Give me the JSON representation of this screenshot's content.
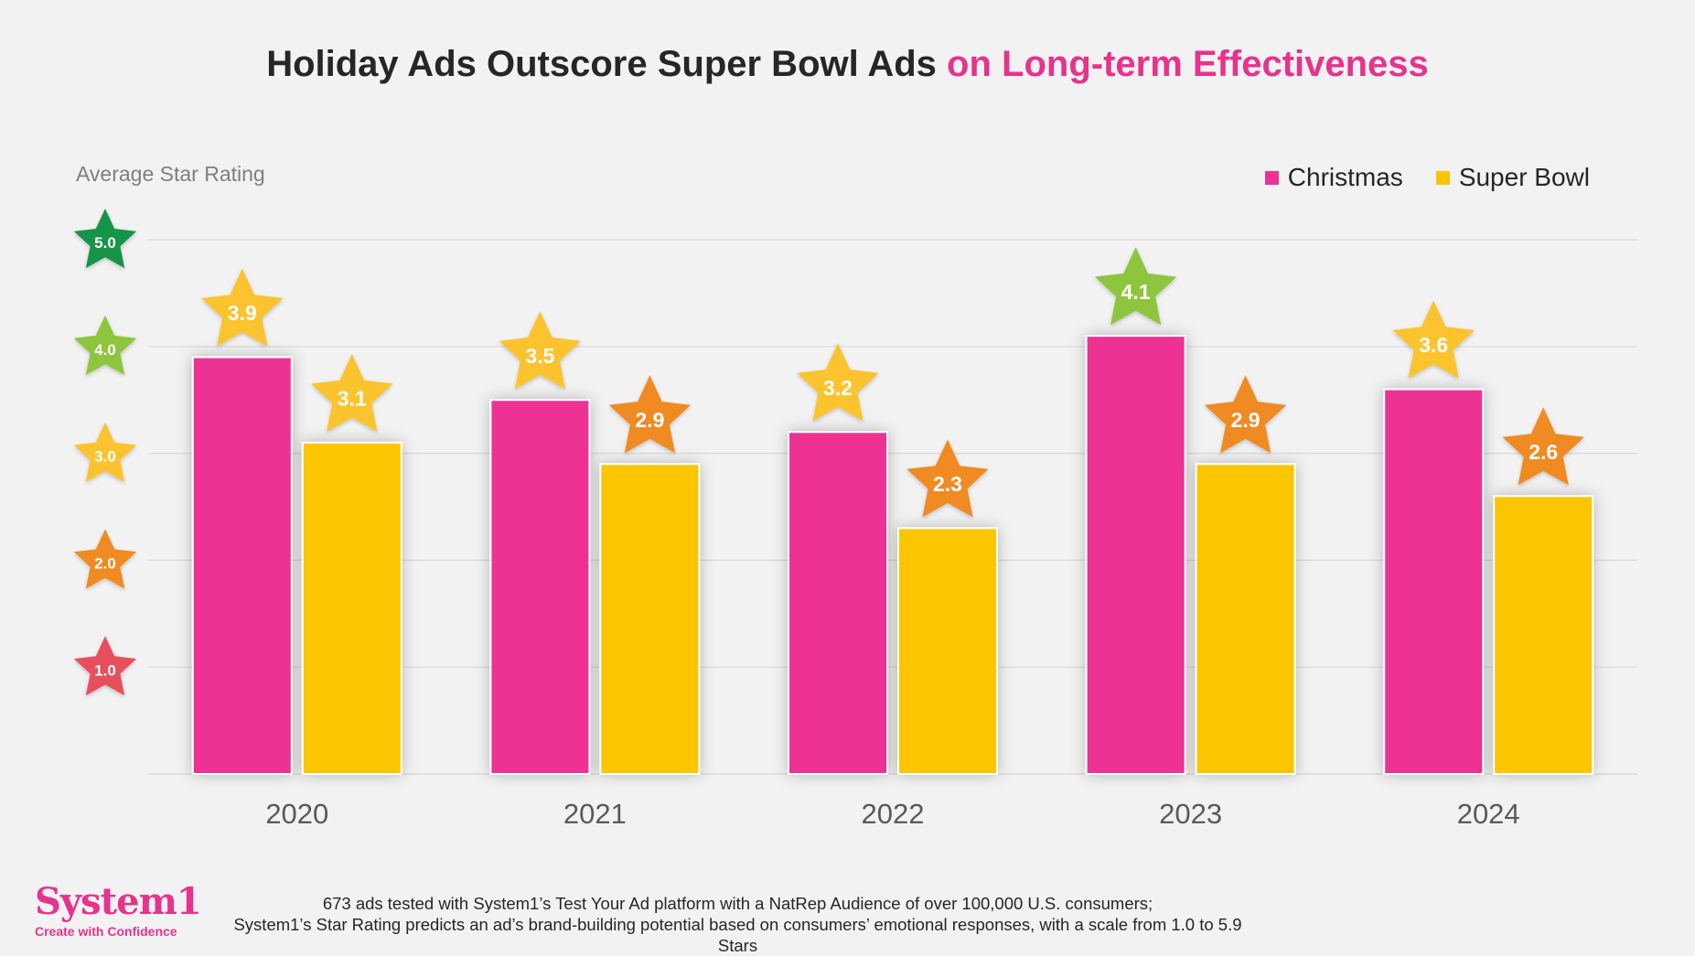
{
  "title": {
    "main": "Holiday Ads Outscore Super Bowl Ads ",
    "highlight": "on Long-term Effectiveness"
  },
  "colors": {
    "christmas": "#ee3294",
    "super_bowl": "#fbc503",
    "highlight": "#e6338c",
    "star_5": "#169447",
    "star_4": "#8dc53e",
    "star_3": "#fbc32f",
    "star_2": "#f08a24",
    "star_1": "#e8505b"
  },
  "legend": {
    "christmas": "Christmas",
    "super_bowl": "Super Bowl"
  },
  "chart_data": {
    "type": "bar",
    "title": "Holiday Ads Outscore Super Bowl Ads on Long-term Effectiveness",
    "ylabel": "Average Star Rating",
    "xlabel": "",
    "categories": [
      "2020",
      "2021",
      "2022",
      "2023",
      "2024"
    ],
    "series": [
      {
        "name": "Christmas",
        "values": [
          3.9,
          3.5,
          3.2,
          4.1,
          3.6
        ]
      },
      {
        "name": "Super Bowl",
        "values": [
          3.1,
          2.9,
          2.3,
          2.9,
          2.6
        ]
      }
    ],
    "data_labels": [
      [
        "3.9",
        "3.5",
        "3.2",
        "4.1",
        "3.6"
      ],
      [
        "3.1",
        "2.9",
        "2.3",
        "2.9",
        "2.6"
      ]
    ],
    "ylim": [
      0,
      5
    ],
    "y_ticks": [
      1.0,
      2.0,
      3.0,
      4.0,
      5.0
    ],
    "y_tick_labels": [
      "1.0",
      "2.0",
      "3.0",
      "4.0",
      "5.0"
    ],
    "grid": true,
    "legend_position": "top-right"
  },
  "logo": {
    "brand": "System1",
    "tagline": "Create with Confidence"
  },
  "footnote": {
    "line1": "673 ads tested with System1’s Test Your Ad platform with a NatRep Audience of over 100,000 U.S. consumers;",
    "line2": "System1’s Star Rating predicts an ad’s brand-building potential based on consumers’ emotional responses, with a scale from 1.0 to 5.9 Stars"
  }
}
